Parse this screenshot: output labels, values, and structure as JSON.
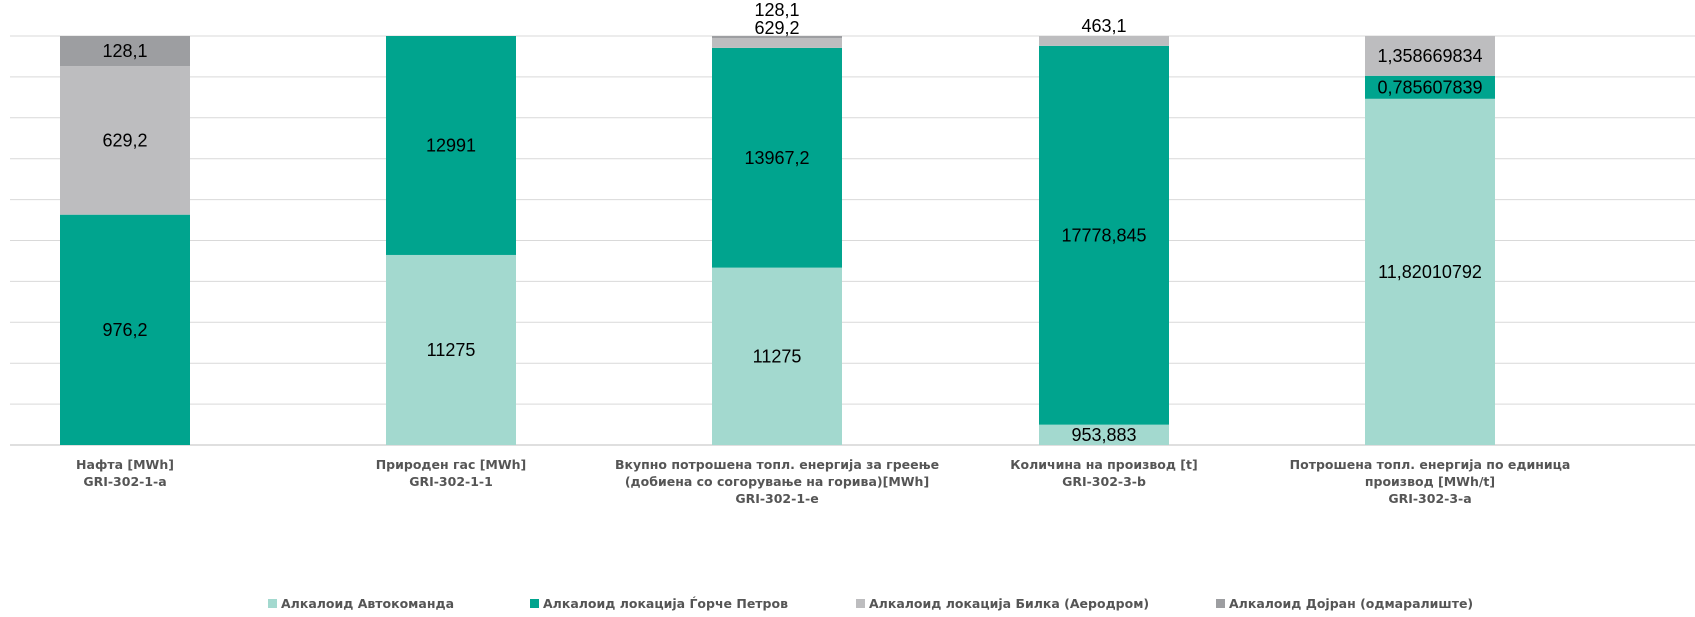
{
  "chart_data": {
    "type": "bar",
    "stacked": "percent",
    "grid": true,
    "legend_position": "bottom",
    "categories": [
      [
        "Нафта [MWh]",
        "GRI-302-1-a"
      ],
      [
        "Природен гас [MWh]",
        "GRI-302-1-1"
      ],
      [
        "Вкупно потрошена топл. енергија за греење",
        "(добиена со согорување на горива)[MWh]",
        "GRI-302-1-e"
      ],
      [
        "Количина на производ [t]",
        "GRI-302-3-b"
      ],
      [
        "Потрошена топл. енергија по единица",
        "производ [MWh/t]",
        "GRI-302-3-a"
      ]
    ],
    "series": [
      {
        "name": "Алкалоид Автокоманда",
        "color": "#a3d9cf",
        "values": [
          0,
          11275,
          11275,
          953.883,
          11.82010792
        ],
        "labels": [
          "",
          "11275",
          "11275",
          "953,883",
          "11,82010792"
        ]
      },
      {
        "name": "Алкалоид локација Ѓорче Петров",
        "color": "#00a48e",
        "values": [
          976.2,
          12991,
          13967.2,
          17778.845,
          0.785607839
        ],
        "labels": [
          "976,2",
          "12991",
          "13967,2",
          "17778,845",
          "0,785607839"
        ]
      },
      {
        "name": "Алкалоид локација Билка (Аеродром)",
        "color": "#bdbdbf",
        "values": [
          629.2,
          0,
          629.2,
          463.1,
          1.358669834
        ],
        "labels": [
          "629,2",
          "",
          "629,2",
          "463,1",
          "1,358669834"
        ]
      },
      {
        "name": "Алкалоид Дојран (одмаралиште)",
        "color": "#9d9ea1",
        "values": [
          128.1,
          0,
          128.1,
          0,
          0
        ],
        "labels": [
          "128,1",
          "",
          "128,1",
          "",
          ""
        ]
      }
    ]
  }
}
